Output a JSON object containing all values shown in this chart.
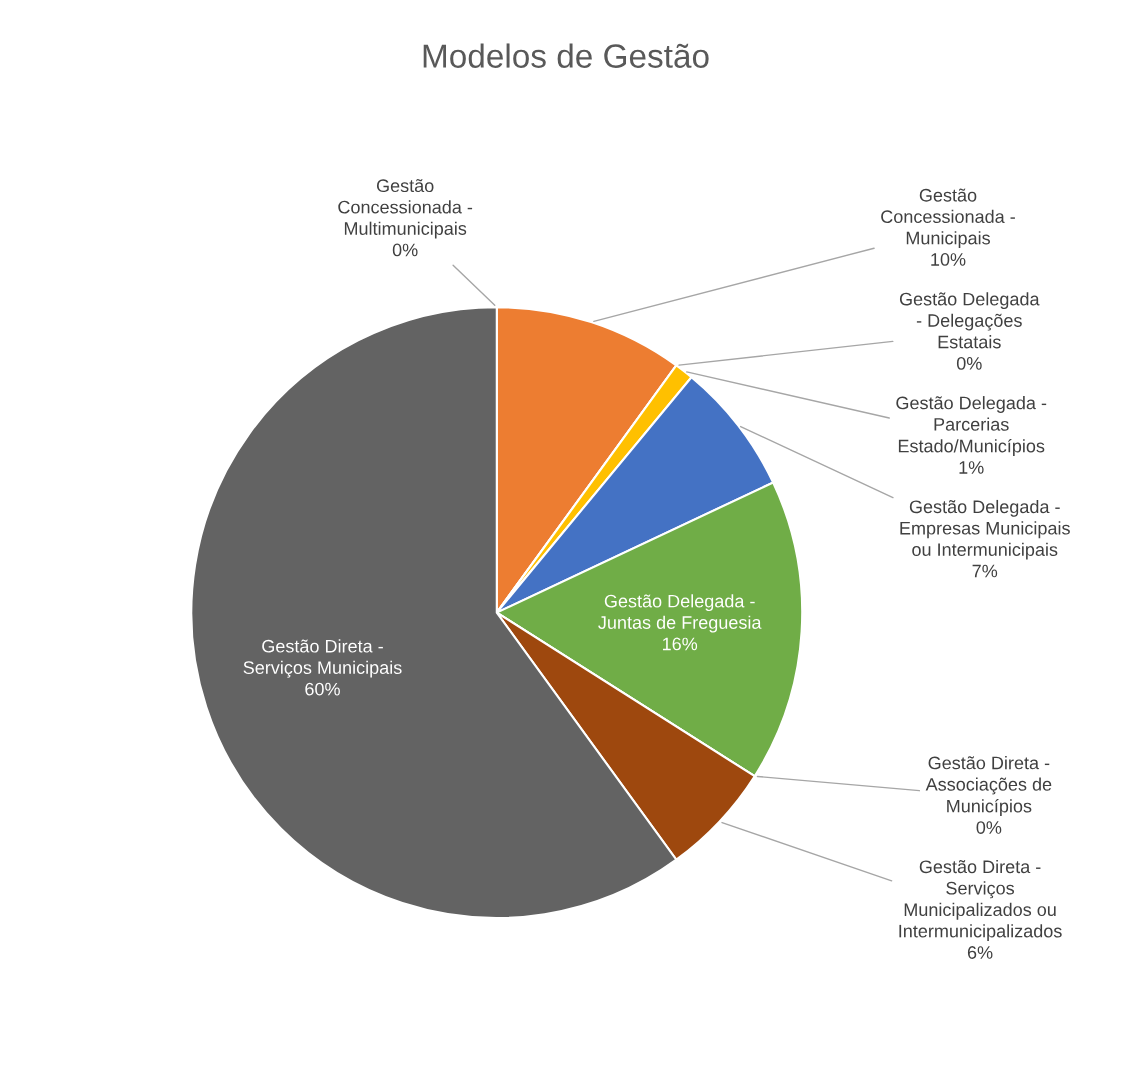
{
  "chart_data": {
    "type": "pie",
    "title": "Modelos de Gestão",
    "categories": [
      "Gestão\nConcessionada -\nMultimunicipais",
      "Gestão\nConcessionada -\nMunicipais",
      "Gestão Delegada\n- Delegações\nEstatais",
      "Gestão Delegada -\nParcerias\nEstado/Municípios",
      "Gestão Delegada -\nEmpresas Municipais\nou Intermunicipais",
      "Gestão Delegada -\nJuntas de Freguesia",
      "Gestão Direta -\nAssociações de\nMunicípios",
      "Gestão Direta -\nServiços\nMunicipalizados ou\nIntermunicipalizados",
      "Gestão Direta -\nServiços Municipais"
    ],
    "values": [
      0,
      10,
      0,
      1,
      7,
      16,
      0,
      6,
      60
    ],
    "value_labels": [
      "0%",
      "10%",
      "0%",
      "1%",
      "7%",
      "16%",
      "0%",
      "6%",
      "60%"
    ],
    "colors": [
      "#5b9bd5",
      "#ed7d31",
      "#a5a5a5",
      "#ffc000",
      "#4472c4",
      "#70ad47",
      "#264478",
      "#9e480e",
      "#636363"
    ],
    "legend": false
  }
}
